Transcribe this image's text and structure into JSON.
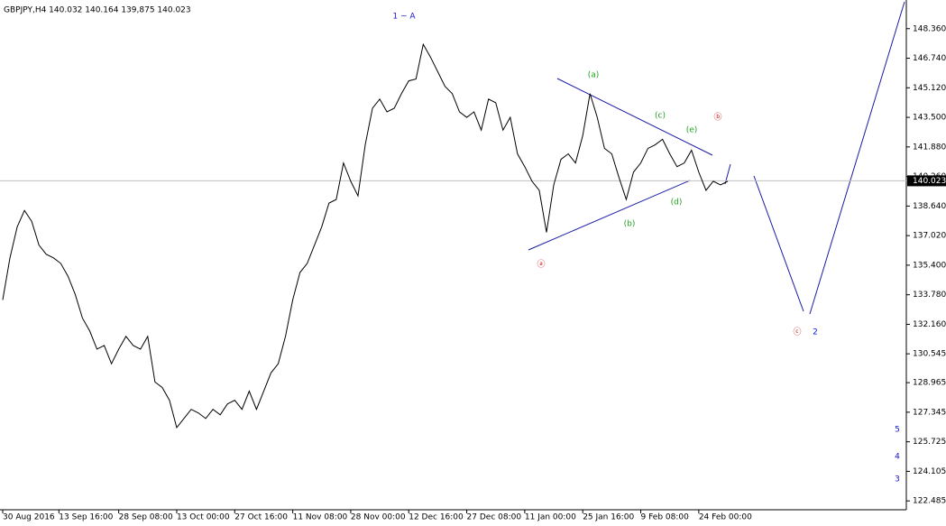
{
  "chart_data": {
    "type": "line",
    "title": "GBPJPY,H4  140.032 140.164 139,875 140.023",
    "color": "#000000",
    "values": [
      133.5,
      135.8,
      137.5,
      138.4,
      137.8,
      136.5,
      136.0,
      135.8,
      135.5,
      134.8,
      133.8,
      132.5,
      131.8,
      130.8,
      131.0,
      130.0,
      130.8,
      131.5,
      131.0,
      130.8,
      131.5,
      129.0,
      128.7,
      128.0,
      126.5,
      127.0,
      127.5,
      127.3,
      127.0,
      127.5,
      127.2,
      127.8,
      128.0,
      127.5,
      128.5,
      127.5,
      128.5,
      129.5,
      130.0,
      131.5,
      133.5,
      135.0,
      135.5,
      136.5,
      137.5,
      138.8,
      139.0,
      141.0,
      140.0,
      139.2,
      142.0,
      144.0,
      144.5,
      143.8,
      144.0,
      144.8,
      145.5,
      145.6,
      147.5,
      146.8,
      146.0,
      145.2,
      144.8,
      143.8,
      143.5,
      143.8,
      142.8,
      144.5,
      144.3,
      142.8,
      143.5,
      141.5,
      140.8,
      140.0,
      139.5,
      137.2,
      139.8,
      141.2,
      141.5,
      141.0,
      142.5,
      144.8,
      143.5,
      141.8,
      141.5,
      140.2,
      139.0,
      140.5,
      141.0,
      141.8,
      142.0,
      142.3,
      141.5,
      140.8,
      141.0,
      141.7,
      140.5,
      139.5,
      140.0,
      139.8,
      140.0
    ],
    "xlim": [
      0,
      125
    ],
    "xticks": [
      {
        "value": 0,
        "label": "30 Aug 2016"
      },
      {
        "value": 7.75,
        "label": "13 Sep 16:00"
      },
      {
        "value": 16,
        "label": "28 Sep 08:00"
      },
      {
        "value": 24,
        "label": "13 Oct 00:00"
      },
      {
        "value": 32,
        "label": "27 Oct 16:00"
      },
      {
        "value": 40,
        "label": "11 Nov 08:00"
      },
      {
        "value": 48,
        "label": "28 Nov 00:00"
      },
      {
        "value": 56,
        "label": "12 Dec 16:00"
      },
      {
        "value": 64,
        "label": "27 Dec 08:00"
      },
      {
        "value": 72,
        "label": "11 Jan 00:00"
      },
      {
        "value": 80,
        "label": "25 Jan 16:00"
      },
      {
        "value": 88,
        "label": "9 Feb 08:00"
      },
      {
        "value": 96,
        "label": "24 Feb 00:00"
      }
    ],
    "ylim": [
      122.0,
      149.93
    ],
    "yticks": [
      {
        "value": 148.36,
        "label": "148.360"
      },
      {
        "value": 146.74,
        "label": "146.740"
      },
      {
        "value": 145.12,
        "label": "145.120"
      },
      {
        "value": 143.5,
        "label": "143.500"
      },
      {
        "value": 141.88,
        "label": "141.880"
      },
      {
        "value": 140.26,
        "label": "140.260"
      },
      {
        "value": 138.64,
        "label": "138.640"
      },
      {
        "value": 137.02,
        "label": "137.020"
      },
      {
        "value": 135.4,
        "label": "135.400"
      },
      {
        "value": 133.78,
        "label": "133.780"
      },
      {
        "value": 132.16,
        "label": "132.160"
      },
      {
        "value": 130.545,
        "label": "130.545"
      },
      {
        "value": 128.965,
        "label": "128.965"
      },
      {
        "value": 127.345,
        "label": "127.345"
      },
      {
        "value": 125.725,
        "label": "125.725"
      },
      {
        "value": 124.105,
        "label": "124.105"
      },
      {
        "value": 122.485,
        "label": "122.485"
      }
    ],
    "last_price": 140.023,
    "annotations": [
      "1 ~ A",
      "(a)",
      "(c)",
      "(e)",
      "ⓑ",
      "(b)",
      "(d)",
      "ⓐ",
      "ⓒ",
      "2",
      "5",
      "4",
      "3"
    ]
  }
}
